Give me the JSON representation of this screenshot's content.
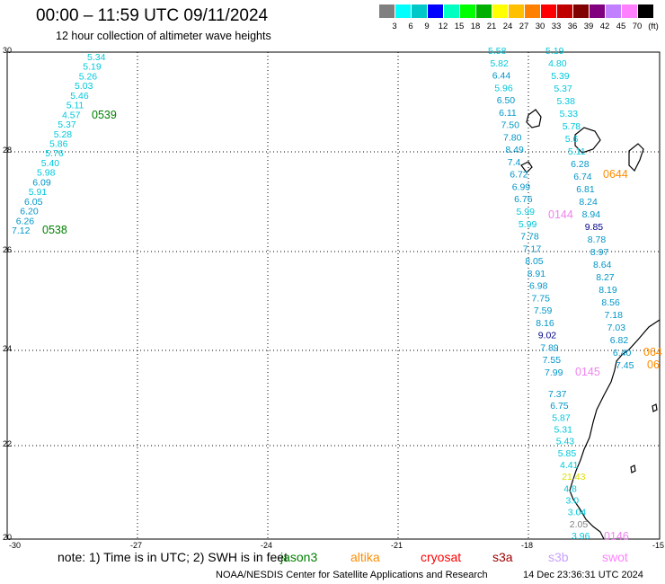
{
  "header": {
    "title": "00:00 – 11:59 UTC 09/11/2024",
    "subtitle": "12 hour collection of altimeter wave heights"
  },
  "legend": {
    "colors": [
      "#808080",
      "#00ffff",
      "#00c8c8",
      "#0000ff",
      "#00ffc0",
      "#00ff00",
      "#00b000",
      "#ffff00",
      "#ffc000",
      "#ff8000",
      "#ff0000",
      "#c00000",
      "#800000",
      "#800080",
      "#c080ff",
      "#ff80ff",
      "#000000"
    ],
    "labels": [
      "3",
      "6",
      "9",
      "12",
      "15",
      "18",
      "21",
      "24",
      "27",
      "30",
      "33",
      "36",
      "39",
      "42",
      "45",
      "70",
      "(ft)"
    ]
  },
  "axes": {
    "x_ticks": [
      "-30",
      "-27",
      "-24",
      "-21",
      "-18",
      "-15"
    ],
    "y_ticks": [
      "30",
      "28",
      "26",
      "24",
      "22",
      "20"
    ]
  },
  "passes": [
    {
      "label": "0539",
      "color": "#008000"
    },
    {
      "label": "0538",
      "color": "#008000"
    },
    {
      "label": "0644",
      "color": "#ff8c00"
    },
    {
      "label": "0144",
      "color": "#ee82ee"
    },
    {
      "label": "0145",
      "color": "#ee82ee"
    },
    {
      "label": "064",
      "color": "#ff8c00"
    },
    {
      "label": "06",
      "color": "#ff8c00"
    },
    {
      "label": "0146",
      "color": "#ee82ee"
    }
  ],
  "tracks": {
    "track1": [
      "5.34",
      "5.19",
      "5.26",
      "5.03",
      "5.46",
      "5.11",
      "4.57",
      "5.37",
      "5.28",
      "5.86",
      "5.76",
      "5.40",
      "5.98",
      "6.09",
      "5.91",
      "6.05",
      "6.20",
      "6.26",
      "7.12"
    ],
    "track2": [
      "5.58",
      "5.82",
      "6.44",
      "5.96",
      "6.50",
      "6.11",
      "7.50",
      "7.80",
      "8.49",
      "7.4",
      "6.72",
      "6.99",
      "6.76",
      "5.99",
      "5.99",
      "7.78",
      "7.17",
      "8.05",
      "8.91",
      "6.98",
      "7.75",
      "7.59",
      "8.16",
      "9.02",
      "7.89",
      "7.55",
      "7.99"
    ],
    "track3": [
      "5.19",
      "4.80",
      "5.39",
      "5.37",
      "5.38",
      "5.33",
      "5.78",
      "5.6",
      "5.11",
      "6.28",
      "6.74",
      "6.81",
      "8.24",
      "8.94",
      "9.85",
      "8.78",
      "8.97",
      "8.64",
      "8.27",
      "8.19",
      "8.56",
      "7.18",
      "7.03",
      "6.82",
      "6.40",
      "7.45"
    ],
    "track4": [
      "7.37",
      "6.75",
      "5.87",
      "5.31",
      "5.43",
      "5.85",
      "4.41",
      "21.43",
      "4.8",
      "3.0",
      "3.04",
      "2.05",
      "3.96"
    ]
  },
  "note": {
    "text": "note: 1) Time is in UTC; 2) SWH is in feet",
    "satellites": [
      {
        "name": "jason3",
        "color": "#008000"
      },
      {
        "name": "altika",
        "color": "#ff8c00"
      },
      {
        "name": "cryosat",
        "color": "#ff0000"
      },
      {
        "name": "s3a",
        "color": "#a00000"
      },
      {
        "name": "s3b",
        "color": "#c8a0ff"
      },
      {
        "name": "swot",
        "color": "#ff80ff"
      }
    ]
  },
  "footer": {
    "credit": "NOAA/NESDIS Center for Satellite Applications and Research",
    "timestamp": "14 Dec 23:36:31 UTC 2024"
  }
}
